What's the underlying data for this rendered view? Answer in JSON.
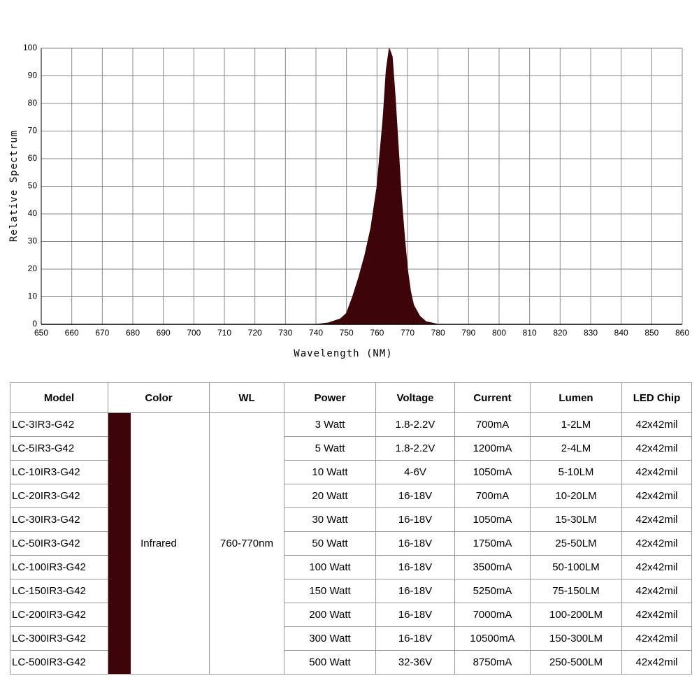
{
  "chart_data": {
    "type": "area",
    "xlabel": "Wavelength (NM)",
    "ylabel": "Relative Spectrum",
    "x": [
      650,
      740,
      744,
      748,
      750,
      752,
      754,
      756,
      758,
      760,
      762,
      763,
      764,
      765,
      766,
      767,
      768,
      769,
      770,
      771,
      772,
      774,
      776,
      780,
      860
    ],
    "values": [
      0,
      0,
      0.5,
      2,
      4,
      10,
      17,
      25,
      35,
      50,
      75,
      92,
      100,
      97,
      82,
      64,
      46,
      32,
      20,
      12,
      7,
      3,
      1,
      0,
      0
    ],
    "color": "#3d0508",
    "xlim": [
      650,
      860
    ],
    "ylim": [
      0,
      100
    ],
    "xticks": [
      650,
      660,
      670,
      680,
      690,
      700,
      710,
      720,
      730,
      740,
      750,
      760,
      770,
      780,
      790,
      800,
      810,
      820,
      830,
      840,
      850,
      860
    ],
    "yticks": [
      0,
      10,
      20,
      30,
      40,
      50,
      60,
      70,
      80,
      90,
      100
    ],
    "grid": true
  },
  "table": {
    "headers": [
      "Model",
      "Color",
      "WL",
      "Power",
      "Voltage",
      "Current",
      "Lumen",
      "LED Chip"
    ],
    "color": "Infrared",
    "swatch_color": "#3d0508",
    "wl": "760-770nm",
    "rows": [
      [
        "LC-3IR3-G42",
        "3 Watt",
        "1.8-2.2V",
        "700mA",
        "1-2LM",
        "42x42mil"
      ],
      [
        "LC-5IR3-G42",
        "5 Watt",
        "1.8-2.2V",
        "1200mA",
        "2-4LM",
        "42x42mil"
      ],
      [
        "LC-10IR3-G42",
        "10 Watt",
        "4-6V",
        "1050mA",
        "5-10LM",
        "42x42mil"
      ],
      [
        "LC-20IR3-G42",
        "20 Watt",
        "16-18V",
        "700mA",
        "10-20LM",
        "42x42mil"
      ],
      [
        "LC-30IR3-G42",
        "30 Watt",
        "16-18V",
        "1050mA",
        "15-30LM",
        "42x42mil"
      ],
      [
        "LC-50IR3-G42",
        "50 Watt",
        "16-18V",
        "1750mA",
        "25-50LM",
        "42x42mil"
      ],
      [
        "LC-100IR3-G42",
        "100 Watt",
        "16-18V",
        "3500mA",
        "50-100LM",
        "42x42mil"
      ],
      [
        "LC-150IR3-G42",
        "150 Watt",
        "16-18V",
        "5250mA",
        "75-150LM",
        "42x42mil"
      ],
      [
        "LC-200IR3-G42",
        "200 Watt",
        "16-18V",
        "7000mA",
        "100-200LM",
        "42x42mil"
      ],
      [
        "LC-300IR3-G42",
        "300 Watt",
        "16-18V",
        "10500mA",
        "150-300LM",
        "42x42mil"
      ],
      [
        "LC-500IR3-G42",
        "500 Watt",
        "32-36V",
        "8750mA",
        "250-500LM",
        "42x42mil"
      ]
    ]
  }
}
